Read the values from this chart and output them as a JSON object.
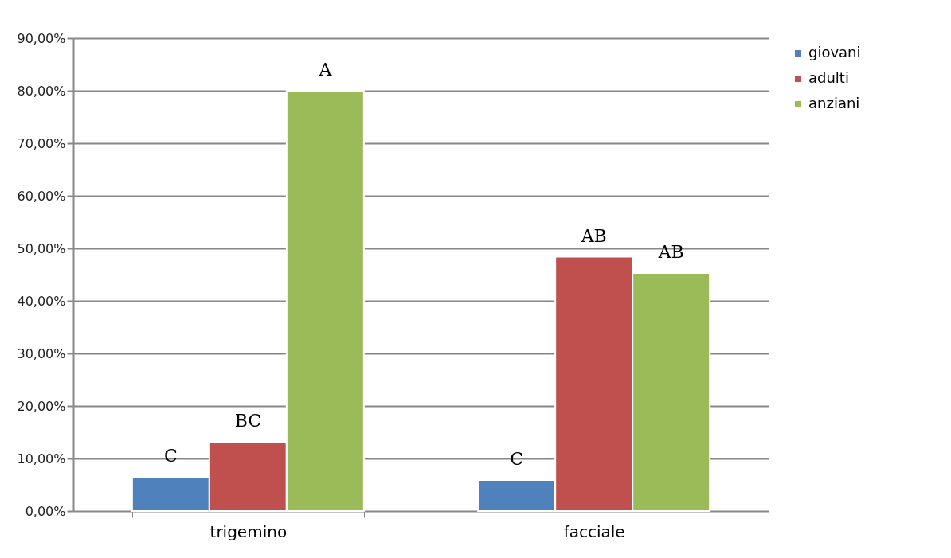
{
  "chart_data": {
    "type": "bar",
    "categories": [
      "trigemino",
      "facciale"
    ],
    "series": [
      {
        "name": "giovani",
        "color": "#4f81bd",
        "values": [
          6.5,
          5.9
        ],
        "value_labels": [
          "C",
          "C"
        ]
      },
      {
        "name": "adulti",
        "color": "#c0504d",
        "values": [
          13.2,
          48.4
        ],
        "value_labels": [
          "BC",
          "AB"
        ]
      },
      {
        "name": "anziani",
        "color": "#9bbb59",
        "values": [
          80,
          45.3
        ],
        "value_labels": [
          "A",
          "AB"
        ]
      }
    ],
    "ylim": [
      0,
      90
    ],
    "yticks": [
      {
        "value": 0,
        "label": "0,00%"
      },
      {
        "value": 10,
        "label": "10,00%"
      },
      {
        "value": 20,
        "label": "20,00%"
      },
      {
        "value": 30,
        "label": "30,00%"
      },
      {
        "value": 40,
        "label": "40,00%"
      },
      {
        "value": 50,
        "label": "50,00%"
      },
      {
        "value": 60,
        "label": "60,00%"
      },
      {
        "value": 70,
        "label": "70,00%"
      },
      {
        "value": 80,
        "label": "80,00%"
      },
      {
        "value": 90,
        "label": "90,00%"
      }
    ],
    "grid": "y",
    "legend": "right"
  }
}
